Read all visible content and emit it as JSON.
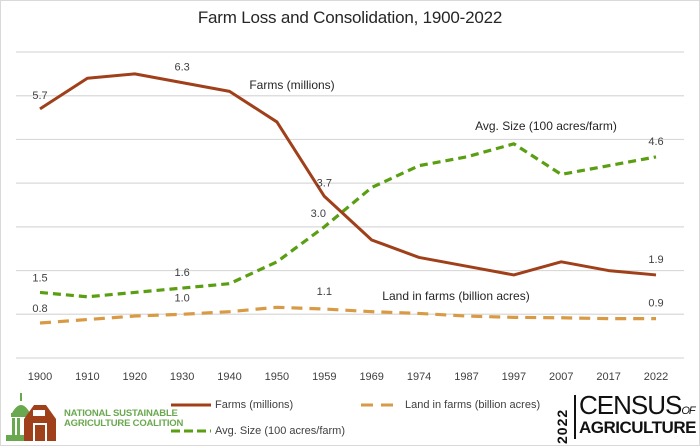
{
  "chart_data": {
    "type": "line",
    "title": "Farm Loss and Consolidation, 1900-2022",
    "xlabel": "",
    "ylabel": "",
    "ylim": [
      0,
      7
    ],
    "grid": true,
    "legend_position": "bottom",
    "categories": [
      "1900",
      "1910",
      "1920",
      "1930",
      "1940",
      "1950",
      "1959",
      "1969",
      "1974",
      "1987",
      "1997",
      "2007",
      "2017",
      "2022"
    ],
    "series": [
      {
        "name": "Farms (millions)",
        "color": "#a0401a",
        "style": "solid",
        "values": [
          5.7,
          6.4,
          6.5,
          6.3,
          6.1,
          5.4,
          3.7,
          2.7,
          2.3,
          2.1,
          1.9,
          2.2,
          2.0,
          1.9
        ],
        "inline_label": "Farms (millions)",
        "data_labels": [
          {
            "index": 0,
            "text": "5.7"
          },
          {
            "index": 3,
            "text": "6.3"
          },
          {
            "index": 6,
            "text": "3.7"
          },
          {
            "index": 13,
            "text": "1.9"
          }
        ]
      },
      {
        "name": "Land in farms (billion acres)",
        "color": "#d99a45",
        "style": "long-dash",
        "values": [
          0.8,
          0.88,
          0.96,
          1.0,
          1.06,
          1.16,
          1.12,
          1.06,
          1.02,
          0.96,
          0.93,
          0.92,
          0.9,
          0.9
        ],
        "inline_label": "Land in farms (billion acres)",
        "data_labels": [
          {
            "index": 0,
            "text": "0.8"
          },
          {
            "index": 3,
            "text": "1.0"
          },
          {
            "index": 6,
            "text": "1.1"
          },
          {
            "index": 13,
            "text": "0.9"
          }
        ]
      },
      {
        "name": "Avg. Size (100 acres/farm)",
        "color": "#5a9e12",
        "style": "dash",
        "values": [
          1.5,
          1.4,
          1.5,
          1.6,
          1.7,
          2.2,
          3.0,
          3.9,
          4.4,
          4.6,
          4.9,
          4.2,
          4.4,
          4.6
        ],
        "inline_label": "Avg. Size (100 acres/farm)",
        "data_labels": [
          {
            "index": 0,
            "text": "1.5"
          },
          {
            "index": 3,
            "text": "1.6"
          },
          {
            "index": 6,
            "text": "3.0"
          },
          {
            "index": 13,
            "text": "4.6"
          }
        ]
      }
    ]
  },
  "legend": {
    "farms": "Farms (millions)",
    "land": "Land in farms (billion acres)",
    "avg_size": "Avg. Size (100 acres/farm)"
  },
  "logos": {
    "nsac_line1": "NATIONAL SUSTAINABLE",
    "nsac_line2": "AGRICULTURE COALITION",
    "census_year": "2022",
    "census_word": "CENSUS",
    "census_of": "OF",
    "census_agriculture": "AGRICULTURE"
  }
}
